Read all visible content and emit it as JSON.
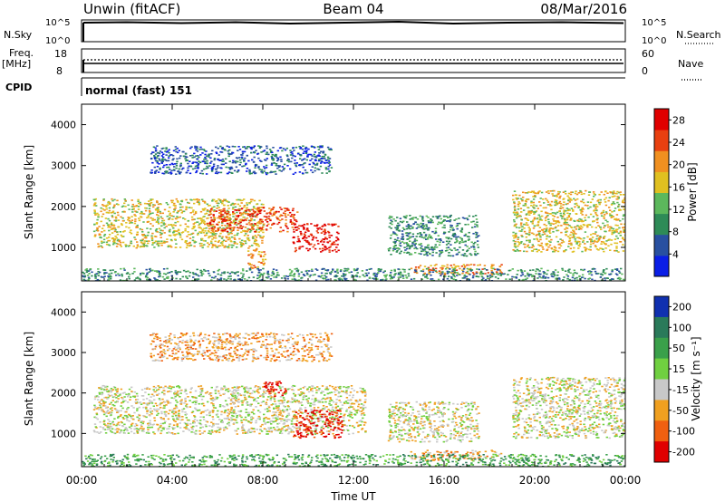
{
  "header": {
    "station": "Unwin (fitACF)",
    "beam": "Beam 04",
    "date": "08/Mar/2016"
  },
  "top_panels": {
    "nsky_label": "N.Sky",
    "nsky_ticks": [
      "10^5",
      "10^0"
    ],
    "nsearch_label": "N.Search",
    "nsearch_ticks": [
      "10^5",
      "10^0"
    ],
    "freq_label": "Freq.",
    "freq_unit": "[MHz]",
    "freq_ticks": [
      "18",
      "8"
    ],
    "nave_label": "Nave",
    "nave_ticks": [
      "60",
      "0"
    ],
    "cpid_label": "CPID",
    "cpid_value": "normal (fast) 151"
  },
  "chart_data": [
    {
      "type": "heatmap",
      "name": "power",
      "ylabel": "Slant Range [km]",
      "xlabel": "Time UT",
      "x_ticks": [
        "00:00",
        "04:00",
        "08:00",
        "12:00",
        "16:00",
        "20:00",
        "00:00"
      ],
      "x_range_hours": [
        0,
        24
      ],
      "y_ticks": [
        1000,
        2000,
        3000,
        4000
      ],
      "ylim": [
        180,
        4500
      ],
      "colorbar": {
        "label": "Power [dB]",
        "ticks": [
          4,
          8,
          12,
          16,
          20,
          24,
          28
        ],
        "range": [
          0,
          30
        ],
        "colors": [
          "#0a1ee6",
          "#2850a0",
          "#2e8b57",
          "#5cb85c",
          "#e0c020",
          "#f09020",
          "#e84010",
          "#e00000"
        ]
      },
      "regions": [
        {
          "t": [
            0.5,
            8.0
          ],
          "r": [
            1000,
            2200
          ],
          "level": 16
        },
        {
          "t": [
            5.5,
            9.5
          ],
          "r": [
            1400,
            2000
          ],
          "level": 26
        },
        {
          "t": [
            9.3,
            11.3
          ],
          "r": [
            900,
            1600
          ],
          "level": 28
        },
        {
          "t": [
            7.3,
            8.1
          ],
          "r": [
            500,
            1000
          ],
          "level": 22
        },
        {
          "t": [
            3.0,
            11.0
          ],
          "r": [
            2800,
            3500
          ],
          "level": 6
        },
        {
          "t": [
            13.5,
            17.5
          ],
          "r": [
            800,
            1800
          ],
          "level": 10
        },
        {
          "t": [
            14.5,
            18.5
          ],
          "r": [
            350,
            600
          ],
          "level": 20
        },
        {
          "t": [
            19.0,
            24.0
          ],
          "r": [
            900,
            2400
          ],
          "level": 18
        },
        {
          "t": [
            0,
            24
          ],
          "r": [
            200,
            500
          ],
          "level": 8
        }
      ]
    },
    {
      "type": "heatmap",
      "name": "velocity",
      "ylabel": "Slant Range [km]",
      "xlabel": "Time UT",
      "x_ticks": [
        "00:00",
        "04:00",
        "08:00",
        "12:00",
        "16:00",
        "20:00",
        "00:00"
      ],
      "x_range_hours": [
        0,
        24
      ],
      "y_ticks": [
        1000,
        2000,
        3000,
        4000
      ],
      "ylim": [
        180,
        4500
      ],
      "colorbar": {
        "label": "Velocity [m s⁻¹]",
        "ticks": [
          "200",
          "100",
          "50",
          "15",
          "-15",
          "-50",
          "-100",
          "-200"
        ],
        "colors": [
          "#1030b0",
          "#2a7a5a",
          "#3aa04a",
          "#70d040",
          "#c8c8c8",
          "#f0a020",
          "#f06010",
          "#e00000"
        ]
      },
      "regions": [
        {
          "t": [
            0.5,
            12.5
          ],
          "r": [
            1000,
            2200
          ],
          "value": 0
        },
        {
          "t": [
            9.3,
            11.5
          ],
          "r": [
            900,
            1600
          ],
          "value": -200
        },
        {
          "t": [
            8.0,
            9.0
          ],
          "r": [
            1900,
            2300
          ],
          "value": -200
        },
        {
          "t": [
            3.0,
            11.0
          ],
          "r": [
            2800,
            3500
          ],
          "value": -50
        },
        {
          "t": [
            13.5,
            17.5
          ],
          "r": [
            800,
            1800
          ],
          "value": 0
        },
        {
          "t": [
            14.5,
            18.5
          ],
          "r": [
            350,
            600
          ],
          "value": -50
        },
        {
          "t": [
            19.0,
            24.0
          ],
          "r": [
            900,
            2400
          ],
          "value": 0
        },
        {
          "t": [
            0,
            24
          ],
          "r": [
            200,
            500
          ],
          "value": 50
        }
      ]
    }
  ]
}
